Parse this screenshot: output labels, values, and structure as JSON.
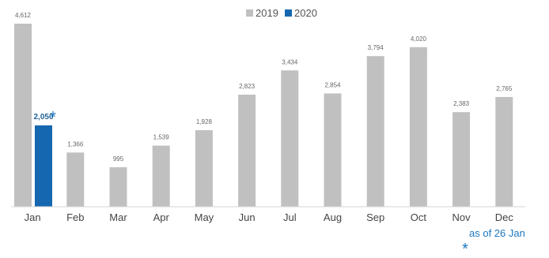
{
  "chart_data": {
    "type": "bar",
    "categories": [
      "Jan",
      "Feb",
      "Mar",
      "Apr",
      "May",
      "Jun",
      "Jul",
      "Aug",
      "Sep",
      "Oct",
      "Nov",
      "Dec"
    ],
    "series": [
      {
        "name": "2019",
        "color": "#c0c0c0",
        "values": [
          4612,
          1366,
          995,
          1539,
          1928,
          2823,
          3434,
          2854,
          3794,
          4020,
          2383,
          2765
        ],
        "labels": [
          "4,612",
          "1,366",
          "995",
          "1,539",
          "1,928",
          "2,823",
          "3,434",
          "2,854",
          "3,794",
          "4,020",
          "2,383",
          "2,765"
        ]
      },
      {
        "name": "2020",
        "color": "#1567b0",
        "values": [
          2050,
          null,
          null,
          null,
          null,
          null,
          null,
          null,
          null,
          null,
          null,
          null
        ],
        "labels": [
          "2,050",
          null,
          null,
          null,
          null,
          null,
          null,
          null,
          null,
          null,
          null,
          null
        ]
      }
    ],
    "ylim": [
      0,
      4612
    ],
    "grid": false,
    "legend_position": "top-center",
    "annotation_marker": "*",
    "footnote": "as of 26 Jan"
  }
}
